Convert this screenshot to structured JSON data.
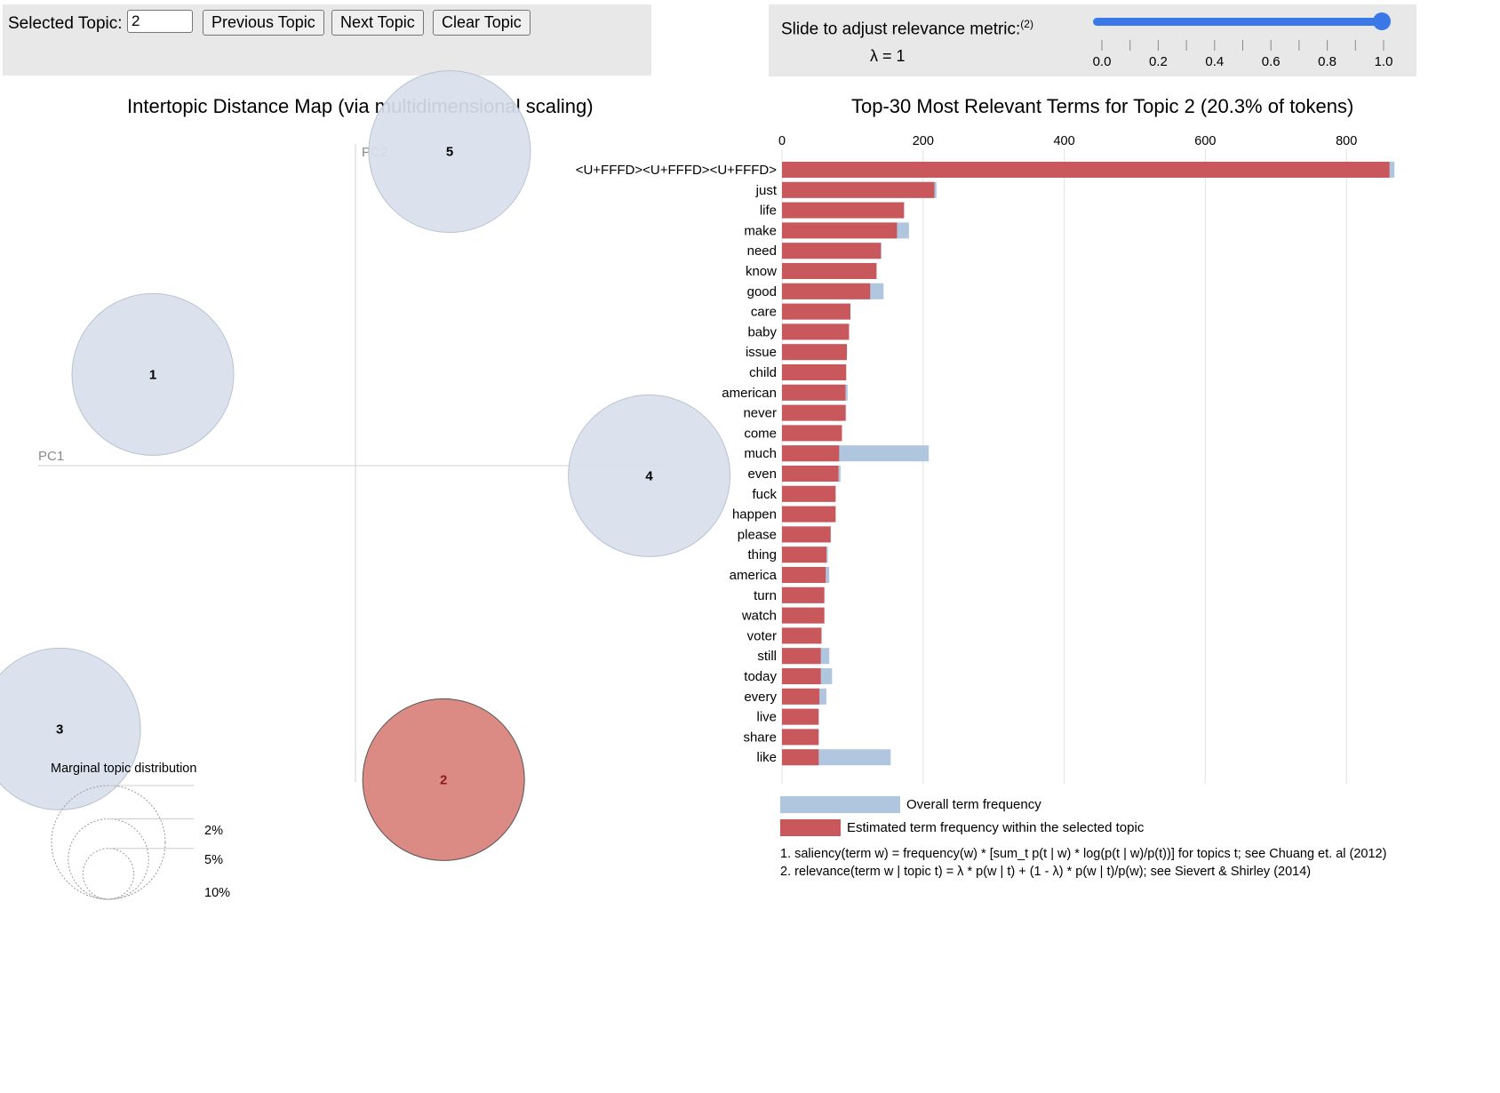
{
  "controls": {
    "selected_topic_label": "Selected Topic:",
    "selected_topic_value": "2",
    "previous_label": "Previous Topic",
    "next_label": "Next Topic",
    "clear_label": "Clear Topic"
  },
  "relevance": {
    "label": "Slide to adjust relevance metric:",
    "footnote_marker": "(2)",
    "lambda_text": "λ = 1",
    "lambda": 1.0,
    "ticks": [
      "0.0",
      "0.2",
      "0.4",
      "0.6",
      "0.8",
      "1.0"
    ]
  },
  "colors": {
    "topic_circle": "#d8e0ec",
    "topic_circle_stroke": "#b8c2cf",
    "selected_circle": "#dc8a84",
    "selected_stroke": "#555555",
    "overall_bar": "#b0c6df",
    "topic_bar": "#c8585b",
    "slider": "#3a78e7"
  },
  "chart_data": [
    {
      "type": "scatter",
      "title": "Intertopic Distance Map (via multidimensional scaling)",
      "xlabel": "PC1",
      "ylabel": "PC2",
      "xlim": [
        -0.35,
        0.35
      ],
      "ylim": [
        -0.35,
        0.35
      ],
      "selected_topic": 2,
      "topics": [
        {
          "id": 1,
          "label": "1",
          "x": -0.2,
          "y": 0.09
        },
        {
          "id": 2,
          "label": "2",
          "x": 0.087,
          "y": -0.31
        },
        {
          "id": 3,
          "label": "3",
          "x": -0.292,
          "y": -0.26
        },
        {
          "id": 4,
          "label": "4",
          "x": 0.29,
          "y": -0.01
        },
        {
          "id": 5,
          "label": "5",
          "x": 0.093,
          "y": 0.31
        }
      ],
      "marginal_legend": {
        "title": "Marginal topic distribution",
        "items": [
          {
            "label": "2%",
            "value": 0.02
          },
          {
            "label": "5%",
            "value": 0.05
          },
          {
            "label": "10%",
            "value": 0.1
          }
        ]
      }
    },
    {
      "type": "bar",
      "orientation": "horizontal",
      "title": "Top-30 Most Relevant Terms for Topic 2 (20.3% of tokens)",
      "xlim": [
        0,
        870
      ],
      "xticks": [
        0,
        200,
        400,
        600,
        800
      ],
      "terms": [
        "<U+FFFD><U+FFFD><U+FFFD>",
        "just",
        "life",
        "make",
        "need",
        "know",
        "good",
        "care",
        "baby",
        "issue",
        "child",
        "american",
        "never",
        "come",
        "much",
        "even",
        "fuck",
        "happen",
        "please",
        "thing",
        "america",
        "turn",
        "watch",
        "voter",
        "still",
        "today",
        "every",
        "live",
        "share",
        "like"
      ],
      "series": [
        {
          "name": "Overall term frequency",
          "values": [
            868,
            219,
            173,
            180,
            141,
            134,
            144,
            97,
            95,
            92,
            91,
            93,
            91,
            85,
            208,
            83,
            76,
            76,
            69,
            65,
            67,
            60,
            60,
            56,
            67,
            71,
            63,
            52,
            52,
            154
          ]
        },
        {
          "name": "Estimated term frequency within the selected topic",
          "values": [
            861,
            216,
            173,
            163,
            140,
            134,
            125,
            97,
            95,
            92,
            91,
            90,
            90,
            85,
            81,
            80,
            76,
            76,
            69,
            63,
            62,
            60,
            60,
            56,
            55,
            55,
            53,
            52,
            52,
            52
          ]
        }
      ]
    }
  ],
  "legend": {
    "overall": "Overall term frequency",
    "estimated": "Estimated term frequency within the selected topic"
  },
  "footnotes": {
    "saliency": "1. saliency(term w) = frequency(w) * [sum_t p(t | w) * log(p(t | w)/p(t))] for topics t; see Chuang et. al (2012)",
    "relevance": "2. relevance(term w | topic t) = λ * p(w | t) + (1 - λ) * p(w | t)/p(w); see Sievert & Shirley (2014)"
  }
}
